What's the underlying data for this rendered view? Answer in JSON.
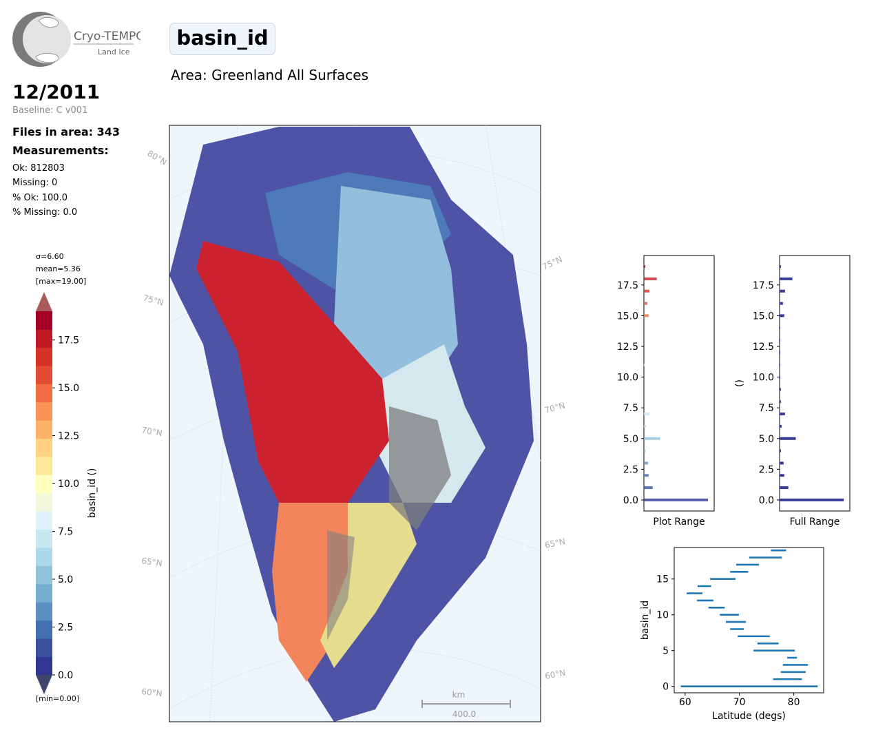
{
  "header": {
    "variable": "basin_id",
    "area": "Area: Greenland All Surfaces",
    "date": "12/2011",
    "baseline": "Baseline: C v001"
  },
  "logo": {
    "name": "Cryo-TEMPO",
    "subtitle": "Land Ice"
  },
  "stats": {
    "files": "Files in area: 343",
    "measurements_label": "Measurements:",
    "ok": "Ok: 812803",
    "missing": "Missing: 0",
    "pct_ok": "% Ok: 100.0",
    "pct_missing": "% Missing: 0.0"
  },
  "colorbar": {
    "sigma": "σ=6.60",
    "mean": "mean=5.36",
    "max": "[max=19.00]",
    "min": "[min=0.00]",
    "label": "basin_id ()",
    "ticks": [
      "0.0",
      "2.5",
      "5.0",
      "7.5",
      "10.0",
      "12.5",
      "15.0",
      "17.5"
    ],
    "colors": [
      "#313695",
      "#3a51a2",
      "#4370b0",
      "#5b8fc2",
      "#74add1",
      "#91c3dc",
      "#abd9e9",
      "#c8e6f0",
      "#e0f3f8",
      "#f1f9da",
      "#ffffbf",
      "#fee99b",
      "#fed280",
      "#fdb366",
      "#f99456",
      "#f46d43",
      "#e34a33",
      "#d73027",
      "#c01a27",
      "#a50026"
    ]
  },
  "map": {
    "lat_labels": [
      "80°N",
      "75°N",
      "70°N",
      "65°N",
      "60°N",
      "75°N",
      "70°N",
      "65°N",
      "60°N"
    ],
    "scale_unit": "km",
    "scale_value": "400.0"
  },
  "chart_data": [
    {
      "type": "bar",
      "orientation": "horizontal",
      "xlabel": "Plot Range",
      "ylabel": "",
      "ylim": [
        -0.9,
        19.9
      ],
      "yticks": [
        "0.0",
        "2.5",
        "5.0",
        "7.5",
        "10.0",
        "12.5",
        "15.0",
        "17.5"
      ],
      "categories": [
        0,
        1,
        2,
        3,
        4,
        5,
        6,
        7,
        11,
        15,
        16,
        17,
        18,
        19
      ],
      "values": [
        0.95,
        0.13,
        0.07,
        0.06,
        0.02,
        0.24,
        0.03,
        0.08,
        0.01,
        0.07,
        0.05,
        0.08,
        0.19,
        0.02
      ]
    },
    {
      "type": "bar",
      "orientation": "horizontal",
      "xlabel": "Full Range",
      "ylabel": "()",
      "ylim": [
        -0.9,
        19.9
      ],
      "yticks": [
        "0.0",
        "2.5",
        "5.0",
        "7.5",
        "10.0",
        "12.5",
        "15.0",
        "17.5"
      ],
      "categories": [
        0,
        1,
        2,
        3,
        4,
        5,
        6,
        7,
        8,
        9,
        10,
        11,
        12,
        13,
        14,
        15,
        16,
        17,
        18,
        19
      ],
      "values": [
        0.95,
        0.13,
        0.07,
        0.06,
        0.02,
        0.24,
        0.03,
        0.08,
        0.02,
        0.02,
        0.01,
        0.01,
        0.01,
        0.01,
        0.01,
        0.07,
        0.05,
        0.08,
        0.19,
        0.02
      ]
    },
    {
      "type": "range",
      "xlabel": "Latitude (degs)",
      "ylabel": "basin_id",
      "xlim": [
        58,
        85.5
      ],
      "ylim": [
        -0.9,
        19.4
      ],
      "xticks": [
        "60",
        "70",
        "80"
      ],
      "yticks": [
        "0",
        "5",
        "10",
        "15"
      ],
      "ranges": [
        {
          "basin": 0,
          "min": 59.2,
          "max": 84.4
        },
        {
          "basin": 1,
          "min": 76.2,
          "max": 81.5
        },
        {
          "basin": 2,
          "min": 77.6,
          "max": 82.2
        },
        {
          "basin": 3,
          "min": 78.0,
          "max": 82.6
        },
        {
          "basin": 4,
          "min": 78.8,
          "max": 80.6
        },
        {
          "basin": 5,
          "min": 72.6,
          "max": 80.2
        },
        {
          "basin": 6,
          "min": 73.3,
          "max": 77.2
        },
        {
          "basin": 7,
          "min": 69.7,
          "max": 75.6
        },
        {
          "basin": 8,
          "min": 68.3,
          "max": 70.8
        },
        {
          "basin": 9,
          "min": 67.5,
          "max": 71.2
        },
        {
          "basin": 10,
          "min": 66.4,
          "max": 69.9
        },
        {
          "basin": 11,
          "min": 64.3,
          "max": 67.3
        },
        {
          "basin": 12,
          "min": 62.2,
          "max": 65.2
        },
        {
          "basin": 13,
          "min": 60.3,
          "max": 63.2
        },
        {
          "basin": 14,
          "min": 62.3,
          "max": 64.8
        },
        {
          "basin": 15,
          "min": 64.6,
          "max": 69.3
        },
        {
          "basin": 16,
          "min": 68.3,
          "max": 71.6
        },
        {
          "basin": 17,
          "min": 69.4,
          "max": 73.6
        },
        {
          "basin": 18,
          "min": 71.8,
          "max": 77.8
        },
        {
          "basin": 19,
          "min": 75.8,
          "max": 78.6
        }
      ]
    }
  ]
}
